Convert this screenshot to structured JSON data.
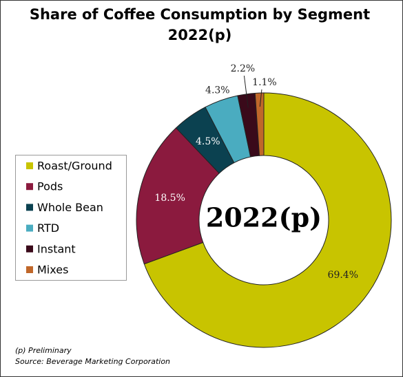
{
  "chart_data": {
    "type": "donut",
    "title": [
      "Share of Coffee Consumption by Segment",
      "2022(p)"
    ],
    "center_label": "2022(p)",
    "categories": [
      "Roast/Ground",
      "Pods",
      "Whole Bean",
      "RTD",
      "Instant",
      "Mixes"
    ],
    "values": [
      69.4,
      18.5,
      4.5,
      4.3,
      2.2,
      1.1
    ],
    "value_labels": [
      "69.4%",
      "18.5%",
      "4.5%",
      "4.3%",
      "2.2%",
      "1.1%"
    ],
    "colors": [
      "#c8c400",
      "#8b1a3e",
      "#0b4150",
      "#4aacc0",
      "#3a0a1a",
      "#c0672a"
    ],
    "notes": [
      "(p) Preliminary",
      "Source: Beverage Marketing Corporation"
    ]
  }
}
